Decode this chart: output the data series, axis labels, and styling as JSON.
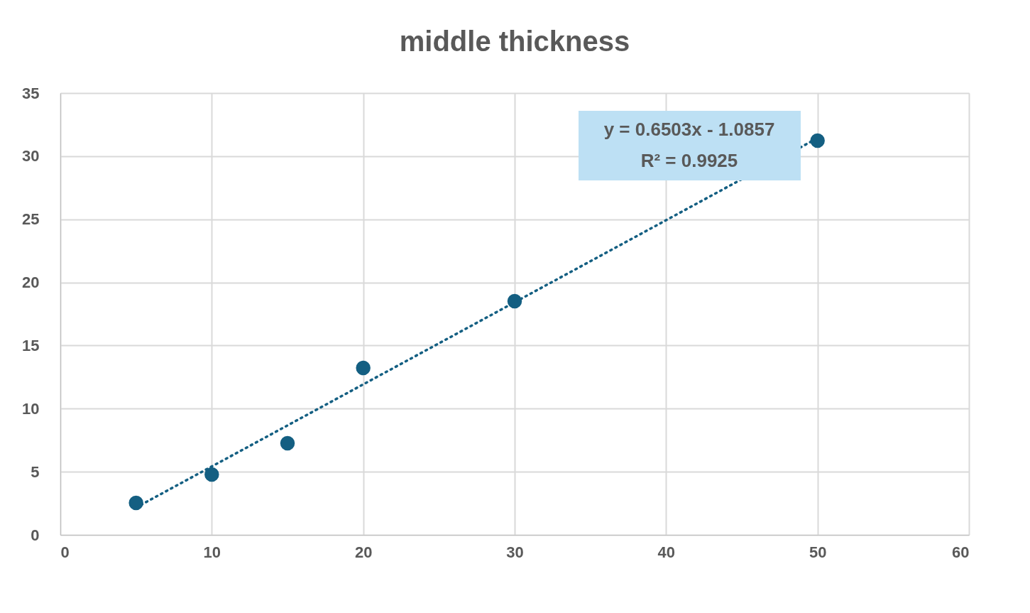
{
  "chart_data": {
    "type": "scatter",
    "title": "middle thickness",
    "x": [
      5,
      10,
      15,
      20,
      30,
      50
    ],
    "series": [
      {
        "color": "#145f82",
        "values": [
          2.53,
          4.78,
          7.26,
          13.22,
          18.51,
          31.23
        ],
        "marker": "circle"
      },
      {
        "type": "line",
        "color": "#145f82",
        "x": [
          5,
          50
        ],
        "values": [
          2.166,
          31.43
        ],
        "line_style": "dotted",
        "marker": "none"
      }
    ],
    "annotations": [
      "y = 0.6503x - 1.0857",
      "R² = 0.9925"
    ],
    "xlim": [
      0,
      60
    ],
    "xticks": [
      0,
      10,
      20,
      30,
      40,
      50,
      60
    ],
    "ylim": [
      0,
      35
    ],
    "yticks": [
      0,
      5,
      10,
      15,
      20,
      25,
      30,
      35
    ],
    "grid": true
  }
}
